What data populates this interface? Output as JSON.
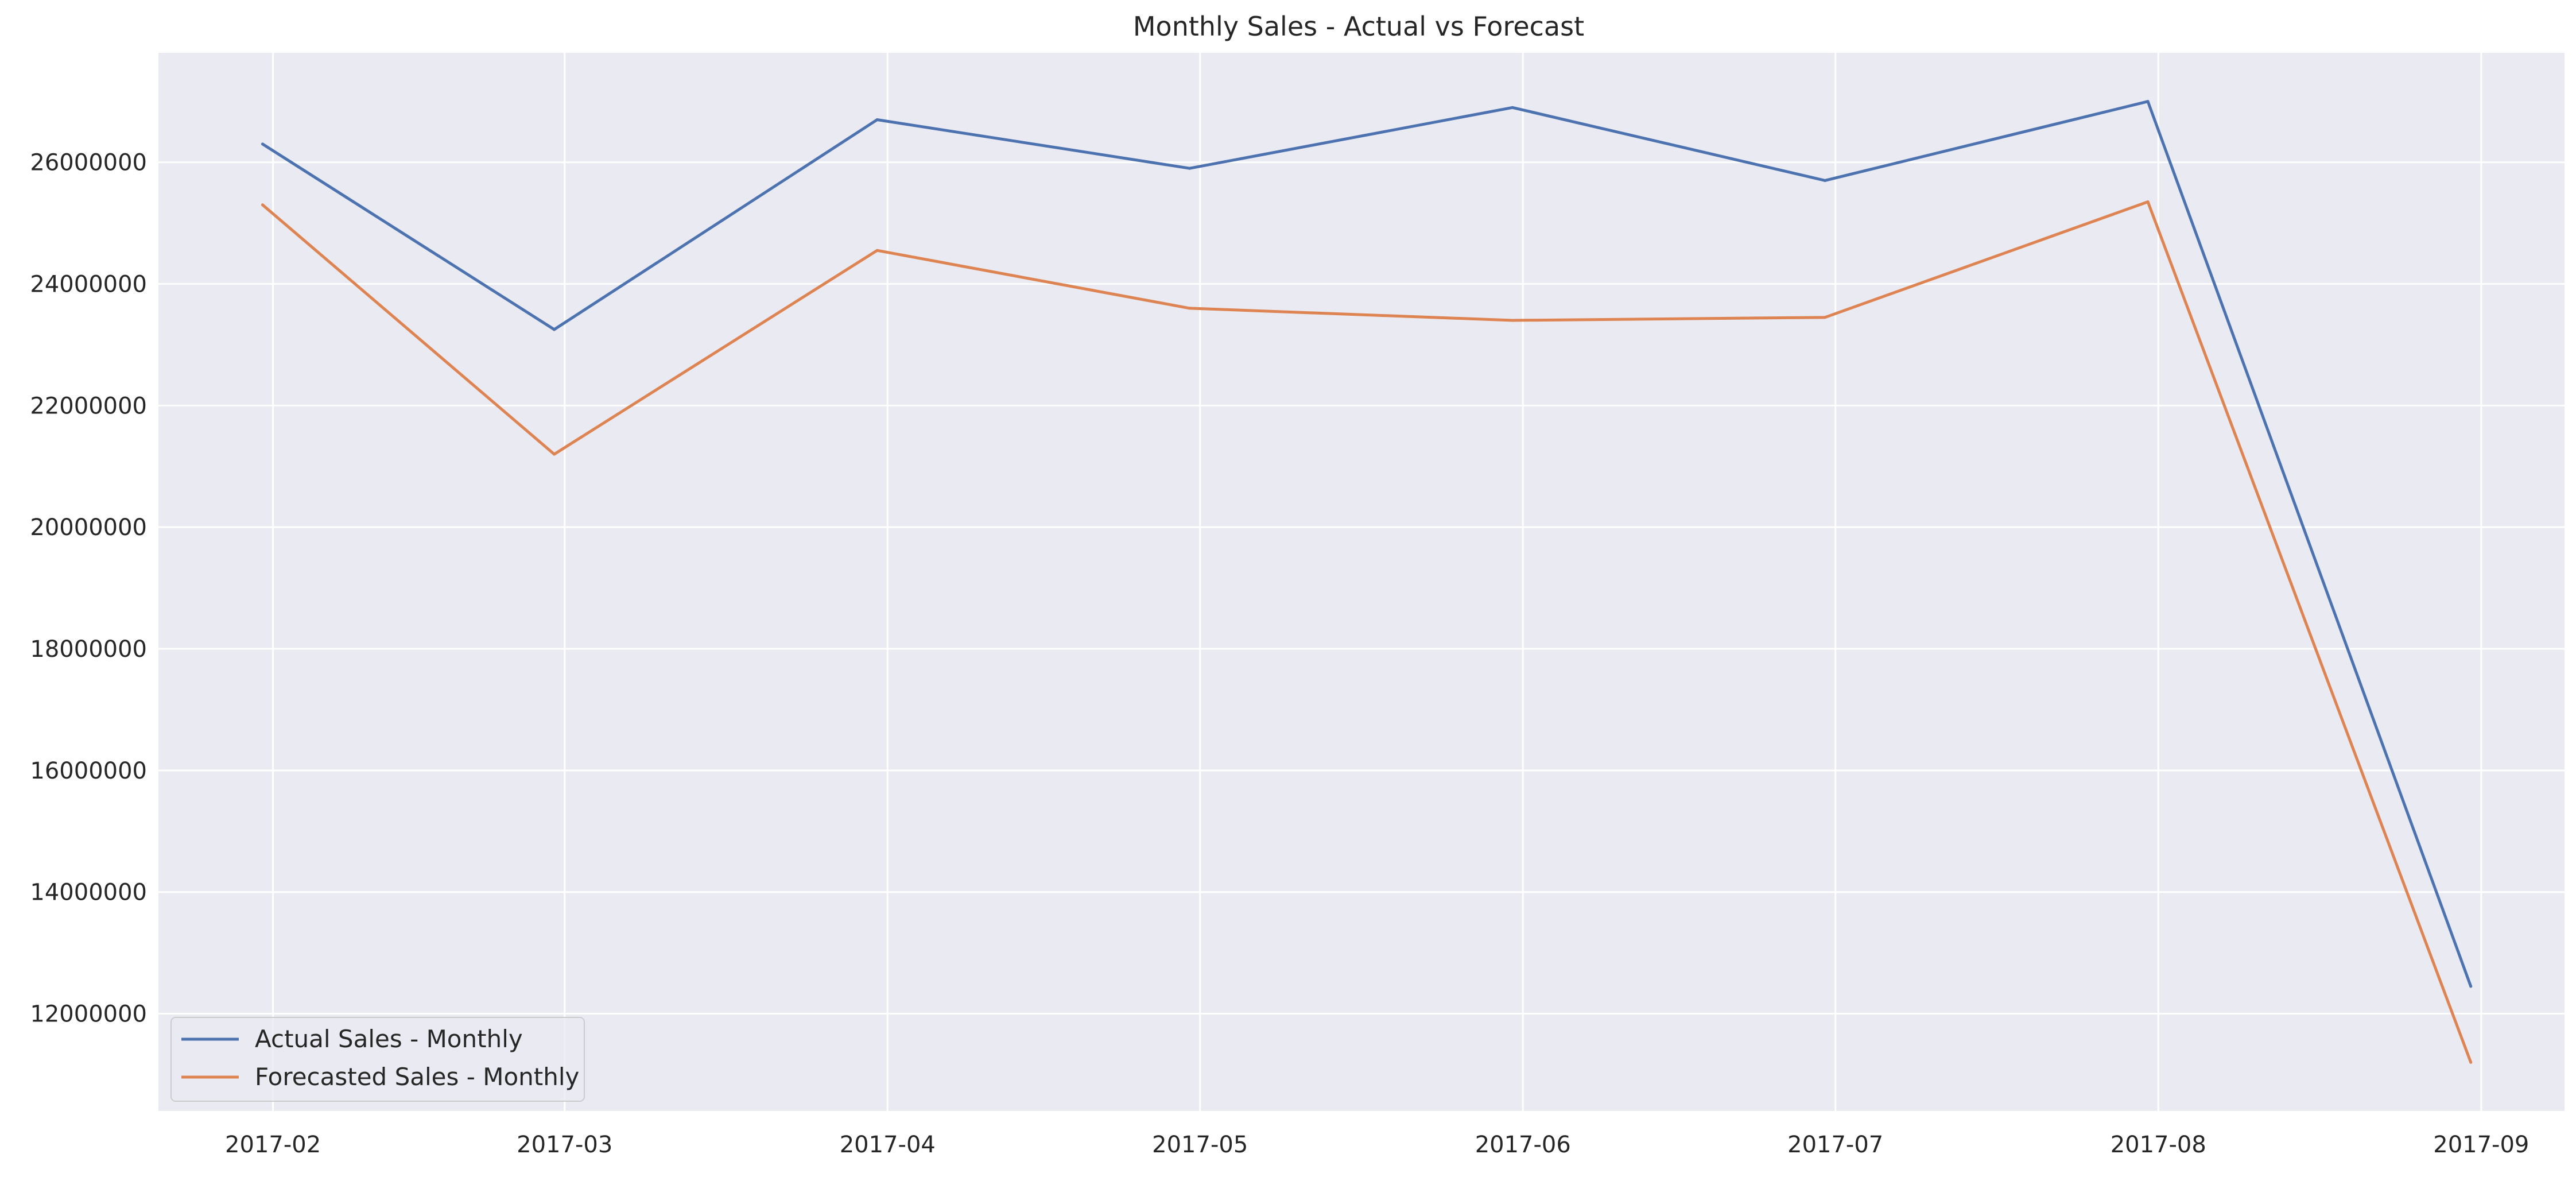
{
  "chart_data": {
    "type": "line",
    "title": "Monthly Sales - Actual vs Forecast",
    "xlabel": "",
    "ylabel": "",
    "x": [
      "2017-01-31",
      "2017-02-28",
      "2017-03-31",
      "2017-04-30",
      "2017-05-31",
      "2017-06-30",
      "2017-07-31",
      "2017-08-31"
    ],
    "x_ticks": [
      "2017-02",
      "2017-03",
      "2017-04",
      "2017-05",
      "2017-06",
      "2017-07",
      "2017-08",
      "2017-09"
    ],
    "x_tick_dates": [
      "2017-02-01",
      "2017-03-01",
      "2017-04-01",
      "2017-05-01",
      "2017-06-01",
      "2017-07-01",
      "2017-08-01",
      "2017-09-01"
    ],
    "xlim": [
      "2017-01-21",
      "2017-09-09"
    ],
    "y_ticks": [
      12000000,
      14000000,
      16000000,
      18000000,
      20000000,
      22000000,
      24000000,
      26000000
    ],
    "y_tick_labels": [
      "12000000",
      "14000000",
      "16000000",
      "18000000",
      "20000000",
      "22000000",
      "24000000",
      "26000000"
    ],
    "ylim": [
      10400000,
      27800000
    ],
    "grid": true,
    "legend_position": "lower-left",
    "series": [
      {
        "name": "Actual Sales - Monthly",
        "color": "#4c72b0",
        "values": [
          26300000,
          23250000,
          26700000,
          25900000,
          26900000,
          25700000,
          27000000,
          12450000
        ]
      },
      {
        "name": "Forecasted Sales - Monthly",
        "color": "#dd8452",
        "values": [
          25300000,
          21200000,
          24550000,
          23600000,
          23400000,
          23450000,
          25350000,
          11200000
        ]
      }
    ],
    "colors": {
      "plot_background": "#eaeaf2",
      "grid": "#ffffff",
      "text": "#262626",
      "legend_border": "#cccccc"
    }
  }
}
